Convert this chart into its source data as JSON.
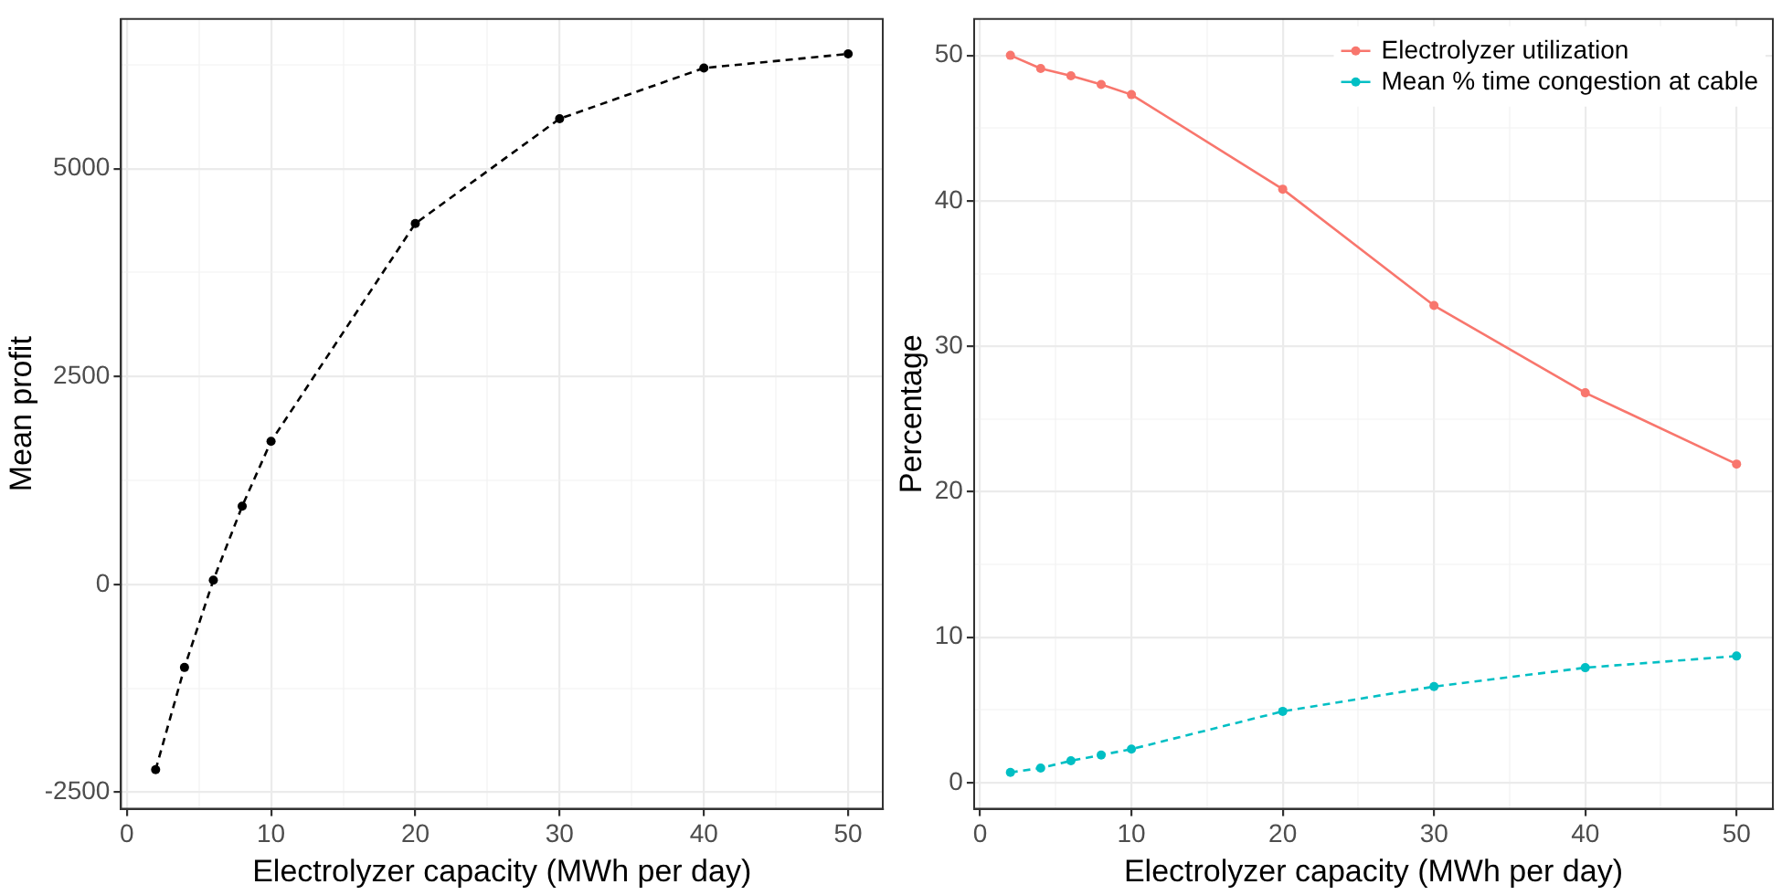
{
  "chart_data": [
    {
      "type": "line",
      "xlabel": "Electrolyzer capacity (MWh per day)",
      "ylabel": "Mean profit",
      "x": [
        2,
        4,
        6,
        8,
        10,
        20,
        30,
        40,
        50
      ],
      "series": [
        {
          "color": "#000000",
          "values": [
            -2230,
            -1000,
            50,
            940,
            1720,
            4340,
            5600,
            6210,
            6380
          ],
          "line_style": "dashed"
        }
      ],
      "xlim": [
        -0.4,
        52.4
      ],
      "xticks": [
        0,
        {
          "value": 5,
          "label": null
        },
        10,
        {
          "value": 15,
          "label": null
        },
        20,
        {
          "value": 25,
          "label": null
        },
        30,
        {
          "value": 35,
          "label": null
        },
        40,
        {
          "value": 45,
          "label": null
        },
        50
      ],
      "ylim": [
        -2700,
        6800
      ],
      "yticks": [
        -2500,
        {
          "value": -1250,
          "label": null
        },
        0,
        {
          "value": 1250,
          "label": null
        },
        2500,
        {
          "value": 3750,
          "label": null
        },
        5000,
        {
          "value": 6250,
          "label": null
        }
      ],
      "grid": true,
      "marker": "circle",
      "legend": false
    },
    {
      "type": "line",
      "xlabel": "Electrolyzer capacity (MWh per day)",
      "ylabel": "Percentage",
      "x": [
        2,
        4,
        6,
        8,
        10,
        20,
        30,
        40,
        50
      ],
      "series": [
        {
          "name": "Electrolyzer utilization",
          "color": "#f8766d",
          "values": [
            50,
            49.1,
            48.6,
            48.0,
            47.3,
            40.8,
            32.8,
            26.8,
            21.9
          ],
          "line_style": "solid"
        },
        {
          "name": "Mean % time congestion at cable",
          "color": "#00bfc4",
          "values": [
            0.7,
            1.0,
            1.5,
            1.9,
            2.3,
            4.9,
            6.6,
            7.9,
            8.7
          ],
          "line_style": "dashed"
        }
      ],
      "xlim": [
        -0.4,
        52.4
      ],
      "xticks": [
        0,
        {
          "value": 5,
          "label": null
        },
        10,
        {
          "value": 15,
          "label": null
        },
        20,
        {
          "value": 25,
          "label": null
        },
        30,
        {
          "value": 35,
          "label": null
        },
        40,
        {
          "value": 45,
          "label": null
        },
        50
      ],
      "ylim": [
        -1.8,
        52.5
      ],
      "yticks": [
        0,
        {
          "value": 5,
          "label": null
        },
        10,
        {
          "value": 15,
          "label": null
        },
        20,
        {
          "value": 25,
          "label": null
        },
        30,
        {
          "value": 35,
          "label": null
        },
        40,
        {
          "value": 45,
          "label": null
        },
        50
      ],
      "grid": true,
      "marker": "circle",
      "legend": "top right"
    }
  ]
}
